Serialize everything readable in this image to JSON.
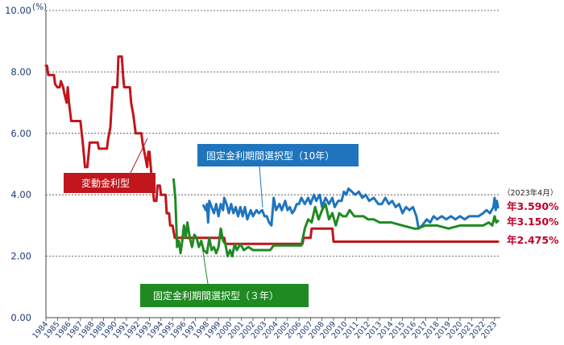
{
  "chart_data": {
    "type": "line",
    "y_unit": "(%)",
    "ylim": [
      0,
      10
    ],
    "yticks": [
      "0.00",
      "2.00",
      "4.00",
      "6.00",
      "8.00",
      "10.00"
    ],
    "xlim": [
      1984,
      2023.5
    ],
    "xticks": [
      "1984",
      "1985",
      "1986",
      "1987",
      "1988",
      "1989",
      "1990",
      "1991",
      "1992",
      "1993",
      "1994",
      "1995",
      "1996",
      "1997",
      "1998",
      "1999",
      "2000",
      "2001",
      "2002",
      "2003",
      "2004",
      "2005",
      "2006",
      "2007",
      "2008",
      "2009",
      "2010",
      "2011",
      "2012",
      "2013",
      "2014",
      "2015",
      "2016",
      "2017",
      "2018",
      "2019",
      "2020",
      "2021",
      "2022",
      "2023"
    ],
    "grid": "horizontal dotted",
    "series": [
      {
        "name": "変動金利型",
        "color": "#c0161c",
        "points": [
          [
            1984.0,
            8.2
          ],
          [
            1984.1,
            8.2
          ],
          [
            1984.2,
            7.9
          ],
          [
            1984.7,
            7.9
          ],
          [
            1984.8,
            7.6
          ],
          [
            1985.0,
            7.5
          ],
          [
            1985.2,
            7.5
          ],
          [
            1985.3,
            7.7
          ],
          [
            1985.5,
            7.5
          ],
          [
            1985.6,
            7.3
          ],
          [
            1985.8,
            7.0
          ],
          [
            1985.9,
            7.5
          ],
          [
            1986.0,
            7.0
          ],
          [
            1986.2,
            6.4
          ],
          [
            1987.0,
            6.4
          ],
          [
            1987.2,
            5.7
          ],
          [
            1987.4,
            4.9
          ],
          [
            1987.6,
            4.9
          ],
          [
            1987.8,
            5.7
          ],
          [
            1988.5,
            5.7
          ],
          [
            1988.6,
            5.5
          ],
          [
            1989.3,
            5.5
          ],
          [
            1989.4,
            5.8
          ],
          [
            1989.6,
            6.2
          ],
          [
            1989.8,
            7.5
          ],
          [
            1990.2,
            7.5
          ],
          [
            1990.3,
            8.5
          ],
          [
            1990.6,
            8.5
          ],
          [
            1990.7,
            7.9
          ],
          [
            1990.8,
            7.5
          ],
          [
            1991.3,
            7.5
          ],
          [
            1991.4,
            7.0
          ],
          [
            1991.6,
            6.6
          ],
          [
            1991.8,
            6.0
          ],
          [
            1992.3,
            6.0
          ],
          [
            1992.4,
            5.7
          ],
          [
            1992.6,
            5.3
          ],
          [
            1992.8,
            4.9
          ],
          [
            1992.9,
            5.4
          ],
          [
            1993.0,
            5.4
          ],
          [
            1993.2,
            4.5
          ],
          [
            1993.4,
            3.8
          ],
          [
            1993.6,
            3.8
          ],
          [
            1993.7,
            4.3
          ],
          [
            1993.9,
            4.3
          ],
          [
            1994.0,
            4.0
          ],
          [
            1994.4,
            4.0
          ],
          [
            1994.5,
            3.4
          ],
          [
            1994.7,
            3.4
          ],
          [
            1994.8,
            3.0
          ],
          [
            1995.0,
            3.0
          ],
          [
            1995.2,
            2.6
          ],
          [
            1999.5,
            2.6
          ],
          [
            1999.6,
            2.4
          ],
          [
            2003.0,
            2.4
          ],
          [
            2003.1,
            2.4
          ],
          [
            2006.3,
            2.4
          ],
          [
            2006.4,
            2.6
          ],
          [
            2007.0,
            2.6
          ],
          [
            2007.1,
            2.9
          ],
          [
            2008.9,
            2.9
          ],
          [
            2009.0,
            2.475
          ],
          [
            2023.3,
            2.475
          ]
        ],
        "label": "変動金利型",
        "end_value": "年2.475%"
      },
      {
        "name": "固定金利期間選択型（10年）",
        "color": "#1f74bd",
        "points": [
          [
            1997.7,
            3.65
          ],
          [
            1997.9,
            3.5
          ],
          [
            1998.0,
            3.7
          ],
          [
            1998.1,
            3.1
          ],
          [
            1998.2,
            3.8
          ],
          [
            1998.4,
            3.6
          ],
          [
            1998.6,
            3.4
          ],
          [
            1998.8,
            3.7
          ],
          [
            1999.0,
            3.3
          ],
          [
            1999.2,
            3.7
          ],
          [
            1999.4,
            3.5
          ],
          [
            1999.5,
            3.9
          ],
          [
            1999.7,
            3.7
          ],
          [
            1999.9,
            3.4
          ],
          [
            2000.1,
            3.7
          ],
          [
            2000.3,
            3.4
          ],
          [
            2000.5,
            3.6
          ],
          [
            2000.7,
            3.3
          ],
          [
            2000.9,
            3.6
          ],
          [
            2001.1,
            3.3
          ],
          [
            2001.3,
            3.6
          ],
          [
            2001.5,
            3.2
          ],
          [
            2001.8,
            3.5
          ],
          [
            2002.0,
            3.3
          ],
          [
            2002.3,
            3.5
          ],
          [
            2002.5,
            3.4
          ],
          [
            2002.8,
            3.5
          ],
          [
            2003.0,
            3.3
          ],
          [
            2003.2,
            3.3
          ],
          [
            2003.4,
            3.1
          ],
          [
            2003.6,
            3.0
          ],
          [
            2003.8,
            3.9
          ],
          [
            2004.0,
            3.5
          ],
          [
            2004.3,
            3.7
          ],
          [
            2004.5,
            3.5
          ],
          [
            2004.8,
            3.8
          ],
          [
            2005.0,
            3.5
          ],
          [
            2005.2,
            3.6
          ],
          [
            2005.4,
            3.4
          ],
          [
            2005.6,
            3.5
          ],
          [
            2005.8,
            3.7
          ],
          [
            2006.0,
            3.7
          ],
          [
            2006.2,
            3.9
          ],
          [
            2006.5,
            3.7
          ],
          [
            2006.8,
            3.9
          ],
          [
            2007.0,
            3.7
          ],
          [
            2007.3,
            4.0
          ],
          [
            2007.5,
            3.8
          ],
          [
            2007.8,
            4.0
          ],
          [
            2008.0,
            3.6
          ],
          [
            2008.3,
            3.9
          ],
          [
            2008.6,
            3.7
          ],
          [
            2008.9,
            3.9
          ],
          [
            2009.1,
            3.6
          ],
          [
            2009.4,
            3.8
          ],
          [
            2009.7,
            3.8
          ],
          [
            2009.9,
            4.1
          ],
          [
            2010.1,
            4.0
          ],
          [
            2010.3,
            4.2
          ],
          [
            2010.6,
            4.1
          ],
          [
            2010.9,
            4.0
          ],
          [
            2011.2,
            4.1
          ],
          [
            2011.5,
            3.9
          ],
          [
            2011.8,
            4.0
          ],
          [
            2012.1,
            3.8
          ],
          [
            2012.5,
            3.9
          ],
          [
            2012.9,
            3.7
          ],
          [
            2013.2,
            3.7
          ],
          [
            2013.5,
            3.9
          ],
          [
            2013.8,
            3.7
          ],
          [
            2014.1,
            3.8
          ],
          [
            2014.4,
            3.6
          ],
          [
            2014.7,
            3.7
          ],
          [
            2015.0,
            3.4
          ],
          [
            2015.3,
            3.6
          ],
          [
            2015.6,
            3.5
          ],
          [
            2015.9,
            3.6
          ],
          [
            2016.2,
            3.3
          ],
          [
            2016.4,
            2.9
          ],
          [
            2016.7,
            3.0
          ],
          [
            2016.9,
            3.1
          ],
          [
            2017.1,
            3.2
          ],
          [
            2017.4,
            3.1
          ],
          [
            2017.7,
            3.3
          ],
          [
            2018.0,
            3.2
          ],
          [
            2018.4,
            3.3
          ],
          [
            2018.8,
            3.2
          ],
          [
            2019.2,
            3.3
          ],
          [
            2019.6,
            3.2
          ],
          [
            2020.0,
            3.3
          ],
          [
            2020.4,
            3.2
          ],
          [
            2020.8,
            3.3
          ],
          [
            2021.2,
            3.3
          ],
          [
            2021.6,
            3.3
          ],
          [
            2022.0,
            3.4
          ],
          [
            2022.3,
            3.5
          ],
          [
            2022.6,
            3.4
          ],
          [
            2022.9,
            3.6
          ],
          [
            2023.0,
            3.9
          ],
          [
            2023.1,
            3.5
          ],
          [
            2023.2,
            3.8
          ],
          [
            2023.3,
            3.59
          ]
        ],
        "label": "固定金利期間選択型（10年）",
        "end_value": "年3.590%"
      },
      {
        "name": "固定金利期間選択型（３年）",
        "color": "#1f8a22",
        "points": [
          [
            1995.1,
            4.5
          ],
          [
            1995.25,
            3.9
          ],
          [
            1995.4,
            2.3
          ],
          [
            1995.55,
            2.5
          ],
          [
            1995.7,
            2.1
          ],
          [
            1995.85,
            2.5
          ],
          [
            1996.0,
            3.0
          ],
          [
            1996.15,
            2.6
          ],
          [
            1996.3,
            3.1
          ],
          [
            1996.5,
            2.6
          ],
          [
            1996.7,
            2.3
          ],
          [
            1996.9,
            2.7
          ],
          [
            1997.1,
            2.6
          ],
          [
            1997.3,
            2.3
          ],
          [
            1997.5,
            2.5
          ],
          [
            1997.7,
            2.2
          ],
          [
            1998.0,
            2.1
          ],
          [
            1998.2,
            2.6
          ],
          [
            1998.4,
            2.2
          ],
          [
            1998.6,
            2.3
          ],
          [
            1998.8,
            2.1
          ],
          [
            1999.0,
            2.3
          ],
          [
            1999.2,
            2.9
          ],
          [
            1999.4,
            2.5
          ],
          [
            1999.6,
            2.4
          ],
          [
            1999.8,
            2.0
          ],
          [
            2000.0,
            2.2
          ],
          [
            2000.2,
            2.0
          ],
          [
            2000.4,
            2.4
          ],
          [
            2000.6,
            2.2
          ],
          [
            2000.9,
            2.4
          ],
          [
            2001.2,
            2.2
          ],
          [
            2001.6,
            2.3
          ],
          [
            2002.0,
            2.2
          ],
          [
            2003.5,
            2.2
          ],
          [
            2003.8,
            2.35
          ],
          [
            2006.2,
            2.35
          ],
          [
            2006.5,
            2.9
          ],
          [
            2006.8,
            3.2
          ],
          [
            2007.1,
            3.1
          ],
          [
            2007.4,
            3.6
          ],
          [
            2007.7,
            3.2
          ],
          [
            2008.0,
            3.5
          ],
          [
            2008.3,
            3.7
          ],
          [
            2008.6,
            3.2
          ],
          [
            2008.9,
            3.4
          ],
          [
            2009.2,
            3.0
          ],
          [
            2009.5,
            3.4
          ],
          [
            2009.8,
            3.3
          ],
          [
            2010.1,
            3.3
          ],
          [
            2010.4,
            3.5
          ],
          [
            2010.8,
            3.3
          ],
          [
            2011.2,
            3.3
          ],
          [
            2011.6,
            3.3
          ],
          [
            2012.0,
            3.2
          ],
          [
            2012.5,
            3.2
          ],
          [
            2013.0,
            3.1
          ],
          [
            2014.0,
            3.1
          ],
          [
            2015.0,
            3.0
          ],
          [
            2016.0,
            2.9
          ],
          [
            2016.3,
            2.9
          ],
          [
            2017.0,
            3.0
          ],
          [
            2018.0,
            3.0
          ],
          [
            2019.0,
            2.9
          ],
          [
            2020.0,
            3.0
          ],
          [
            2021.0,
            3.0
          ],
          [
            2022.0,
            3.0
          ],
          [
            2022.5,
            3.1
          ],
          [
            2022.8,
            3.0
          ],
          [
            2023.0,
            3.3
          ],
          [
            2023.15,
            3.1
          ],
          [
            2023.3,
            3.15
          ]
        ],
        "label": "固定金利期間選択型（３年）",
        "end_value": "年3.150%"
      }
    ],
    "annotation_date": "（2023年4月）"
  }
}
